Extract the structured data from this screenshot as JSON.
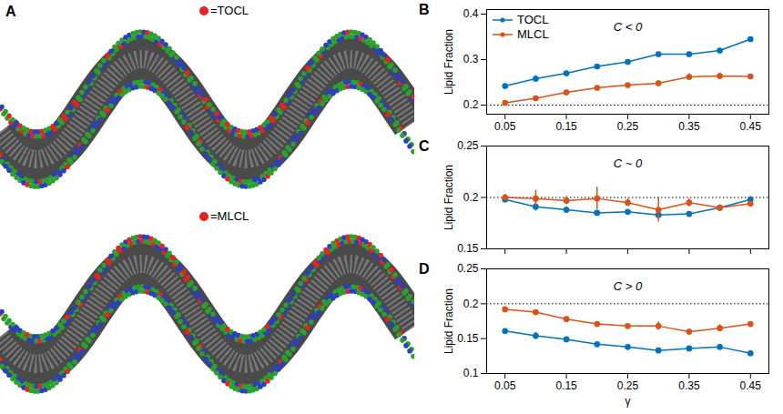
{
  "panel_a": {
    "label": "A",
    "images": [
      {
        "legend_label": "=TOCL",
        "legend_color": "#e8231f"
      },
      {
        "legend_label": "=MLCL",
        "legend_color": "#e8231f"
      }
    ]
  },
  "chart_data": [
    {
      "type": "line",
      "panel": "B",
      "annotation": "C < 0",
      "y_label": "Lipid Fraction",
      "x": [
        0.05,
        0.1,
        0.15,
        0.2,
        0.25,
        0.3,
        0.35,
        0.4,
        0.45
      ],
      "xlim": [
        0.02,
        0.48
      ],
      "xticks": [
        0.05,
        0.15,
        0.25,
        0.35,
        0.45
      ],
      "ylim": [
        0.18,
        0.41
      ],
      "yticks": [
        0.2,
        0.3,
        0.4
      ],
      "reference_line": 0.2,
      "legend": "upper left",
      "series": [
        {
          "name": "TOCL",
          "color": "#0072bd",
          "marker": "circle",
          "line_style": "solid",
          "values": [
            0.242,
            0.258,
            0.27,
            0.285,
            0.295,
            0.312,
            0.312,
            0.32,
            0.345
          ],
          "errors": [
            0.003,
            0.007,
            0.003,
            0.003,
            0.003,
            0.003,
            0.003,
            0.003,
            0.003
          ]
        },
        {
          "name": "MLCL",
          "color": "#d95319",
          "marker": "circle",
          "line_style": "solid",
          "values": [
            0.205,
            0.215,
            0.228,
            0.238,
            0.244,
            0.248,
            0.262,
            0.264,
            0.263
          ],
          "errors": [
            0.003,
            0.003,
            0.003,
            0.004,
            0.004,
            0.006,
            0.007,
            0.007,
            0.004
          ]
        }
      ]
    },
    {
      "type": "line",
      "panel": "C",
      "annotation": "C ~ 0",
      "y_label": "Lipid Fraction",
      "x": [
        0.05,
        0.1,
        0.15,
        0.2,
        0.25,
        0.3,
        0.35,
        0.4,
        0.45
      ],
      "xlim": [
        0.02,
        0.48
      ],
      "xticks": [
        0.05,
        0.15,
        0.25,
        0.35,
        0.45
      ],
      "ylim": [
        0.15,
        0.25
      ],
      "yticks": [
        0.15,
        0.2,
        0.25
      ],
      "reference_line": 0.2,
      "tick_labels": "y",
      "series": [
        {
          "name": "TOCL",
          "color": "#0072bd",
          "marker": "circle",
          "line_style": "solid",
          "values": [
            0.198,
            0.191,
            0.188,
            0.185,
            0.186,
            0.183,
            0.184,
            0.19,
            0.198
          ],
          "errors": [
            0.002,
            0.004,
            0.003,
            0.002,
            0.002,
            0.003,
            0.002,
            0.002,
            0.003
          ]
        },
        {
          "name": "MLCL",
          "color": "#d95319",
          "marker": "circle",
          "line_style": "solid",
          "values": [
            0.2,
            0.199,
            0.197,
            0.199,
            0.195,
            0.188,
            0.195,
            0.19,
            0.194
          ],
          "errors": [
            0.003,
            0.008,
            0.004,
            0.011,
            0.004,
            0.012,
            0.004,
            0.003,
            0.002
          ]
        }
      ]
    },
    {
      "type": "line",
      "panel": "D",
      "annotation": "C > 0",
      "y_label": "Lipid Fraction",
      "x_label": "γ",
      "x": [
        0.05,
        0.1,
        0.15,
        0.2,
        0.25,
        0.3,
        0.35,
        0.4,
        0.45
      ],
      "xlim": [
        0.02,
        0.48
      ],
      "xticks": [
        0.05,
        0.15,
        0.25,
        0.35,
        0.45
      ],
      "ylim": [
        0.1,
        0.25
      ],
      "yticks": [
        0.1,
        0.15,
        0.2,
        0.25
      ],
      "reference_line": 0.2,
      "series": [
        {
          "name": "TOCL",
          "color": "#0072bd",
          "marker": "circle",
          "line_style": "solid",
          "values": [
            0.161,
            0.154,
            0.149,
            0.142,
            0.138,
            0.133,
            0.136,
            0.138,
            0.129
          ],
          "errors": [
            0.003,
            0.005,
            0.003,
            0.002,
            0.002,
            0.002,
            0.002,
            0.002,
            0.004
          ]
        },
        {
          "name": "MLCL",
          "color": "#d95319",
          "marker": "circle",
          "line_style": "solid",
          "values": [
            0.192,
            0.188,
            0.178,
            0.171,
            0.168,
            0.168,
            0.16,
            0.165,
            0.171
          ],
          "errors": [
            0.002,
            0.002,
            0.002,
            0.002,
            0.002,
            0.006,
            0.003,
            0.005,
            0.003
          ]
        }
      ]
    }
  ]
}
